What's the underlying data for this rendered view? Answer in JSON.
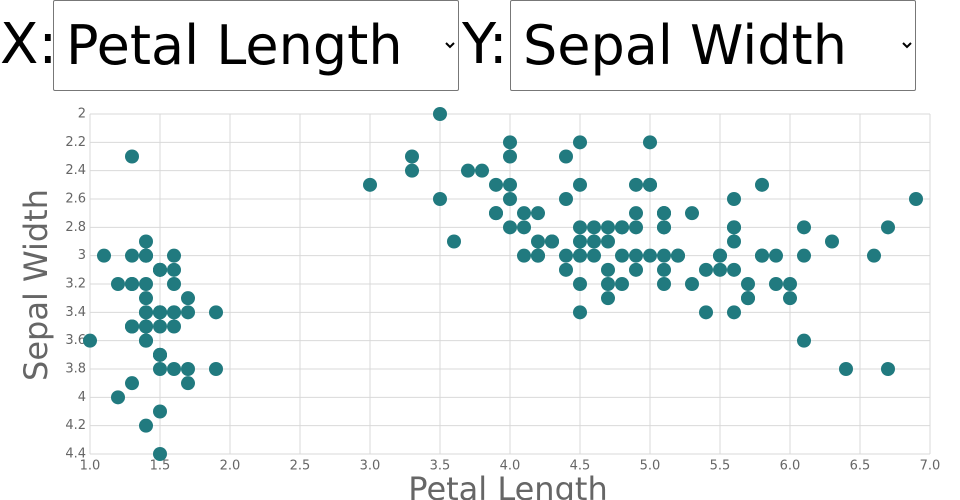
{
  "controls": {
    "x_prefix": "X:",
    "x_selected": "Petal Length",
    "y_prefix": "Y:",
    "y_selected": "Sepal Width"
  },
  "chart_data": {
    "type": "scatter",
    "x_label": "Petal Length",
    "y_label": "Sepal Width",
    "color": "#217a7f",
    "grid": true,
    "y_inverted": true,
    "xlim": [
      1,
      7
    ],
    "ylim": [
      2,
      4.4
    ],
    "xticks": [
      {
        "value": 1,
        "label": "1.0"
      },
      {
        "value": 1.5,
        "label": "1.5"
      },
      {
        "value": 2,
        "label": "2.0"
      },
      {
        "value": 2.5,
        "label": "2.5"
      },
      {
        "value": 3,
        "label": "3.0"
      },
      {
        "value": 3.5,
        "label": "3.5"
      },
      {
        "value": 4,
        "label": "4.0"
      },
      {
        "value": 4.5,
        "label": "4.5"
      },
      {
        "value": 5,
        "label": "5.0"
      },
      {
        "value": 5.5,
        "label": "5.5"
      },
      {
        "value": 6,
        "label": "6.0"
      },
      {
        "value": 6.5,
        "label": "6.5"
      },
      {
        "value": 7,
        "label": "7.0"
      }
    ],
    "yticks": [
      2,
      2.2,
      2.4,
      2.6,
      2.8,
      3,
      3.2,
      3.4,
      3.6,
      3.8,
      4,
      4.2,
      4.4
    ],
    "x": [
      1.4,
      1.4,
      1.3,
      1.5,
      1.4,
      1.7,
      1.4,
      1.5,
      1.4,
      1.5,
      1.5,
      1.6,
      1.4,
      1.1,
      1.2,
      1.5,
      1.3,
      1.4,
      1.7,
      1.5,
      1.7,
      1.5,
      1.0,
      1.7,
      1.9,
      1.6,
      1.6,
      1.5,
      1.4,
      1.6,
      1.6,
      1.5,
      1.5,
      1.4,
      1.5,
      1.2,
      1.3,
      1.4,
      1.3,
      1.5,
      1.3,
      1.3,
      1.3,
      1.6,
      1.9,
      1.4,
      1.6,
      1.4,
      1.5,
      1.4,
      4.7,
      4.5,
      4.9,
      4.0,
      4.6,
      4.5,
      4.7,
      3.3,
      4.6,
      3.9,
      3.5,
      4.2,
      4.0,
      4.7,
      3.6,
      4.4,
      4.5,
      4.1,
      4.5,
      3.9,
      4.8,
      4.0,
      4.9,
      4.7,
      4.3,
      4.4,
      4.8,
      5.0,
      4.5,
      3.5,
      3.8,
      3.7,
      3.9,
      5.1,
      4.5,
      4.5,
      4.7,
      4.4,
      4.1,
      4.0,
      4.4,
      4.6,
      4.0,
      3.3,
      4.2,
      4.2,
      4.2,
      4.3,
      3.0,
      4.1,
      6.0,
      5.1,
      5.9,
      5.6,
      5.8,
      6.6,
      4.5,
      6.3,
      5.8,
      6.1,
      5.1,
      5.3,
      5.5,
      5.0,
      5.1,
      5.3,
      5.5,
      6.7,
      6.9,
      5.0,
      5.7,
      4.9,
      6.7,
      4.9,
      5.7,
      6.0,
      4.8,
      4.9,
      5.6,
      5.8,
      6.1,
      6.4,
      5.6,
      5.1,
      5.6,
      6.1,
      5.6,
      5.5,
      4.8,
      5.4,
      5.6,
      5.1,
      5.1,
      5.9,
      5.7,
      5.2,
      5.0,
      5.2,
      5.4,
      5.1
    ],
    "y": [
      3.5,
      3.0,
      3.2,
      3.1,
      3.6,
      3.9,
      3.4,
      3.4,
      2.9,
      3.1,
      3.7,
      3.4,
      3.0,
      3.0,
      4.0,
      4.4,
      3.9,
      3.5,
      3.8,
      3.8,
      3.4,
      3.7,
      3.6,
      3.3,
      3.4,
      3.0,
      3.4,
      3.5,
      3.4,
      3.2,
      3.1,
      3.4,
      4.1,
      4.2,
      3.1,
      3.2,
      3.5,
      3.6,
      3.0,
      3.4,
      3.5,
      2.3,
      3.2,
      3.5,
      3.8,
      3.0,
      3.8,
      3.2,
      3.7,
      3.3,
      3.2,
      3.2,
      3.1,
      2.3,
      2.8,
      2.8,
      3.3,
      2.4,
      2.9,
      2.7,
      2.0,
      3.0,
      2.2,
      2.9,
      2.9,
      3.1,
      3.0,
      2.7,
      2.2,
      2.5,
      3.2,
      2.8,
      2.5,
      2.8,
      2.9,
      3.0,
      2.8,
      3.0,
      2.9,
      2.6,
      2.4,
      2.4,
      2.7,
      2.7,
      3.0,
      3.4,
      3.1,
      2.3,
      3.0,
      2.5,
      2.6,
      3.0,
      2.6,
      2.3,
      2.7,
      3.0,
      2.9,
      2.9,
      2.5,
      2.8,
      3.3,
      2.7,
      3.0,
      2.9,
      3.0,
      3.0,
      2.5,
      2.9,
      2.5,
      3.6,
      3.2,
      2.7,
      3.0,
      2.5,
      2.8,
      3.2,
      3.0,
      3.8,
      2.6,
      2.2,
      3.2,
      2.8,
      2.8,
      2.7,
      3.3,
      3.2,
      2.8,
      3.0,
      2.8,
      3.0,
      2.8,
      3.8,
      2.8,
      2.8,
      2.6,
      3.0,
      3.4,
      3.1,
      3.0,
      3.1,
      3.1,
      3.1,
      2.7,
      3.2,
      3.3,
      3.0,
      2.5,
      3.0,
      3.4,
      3.0
    ]
  }
}
